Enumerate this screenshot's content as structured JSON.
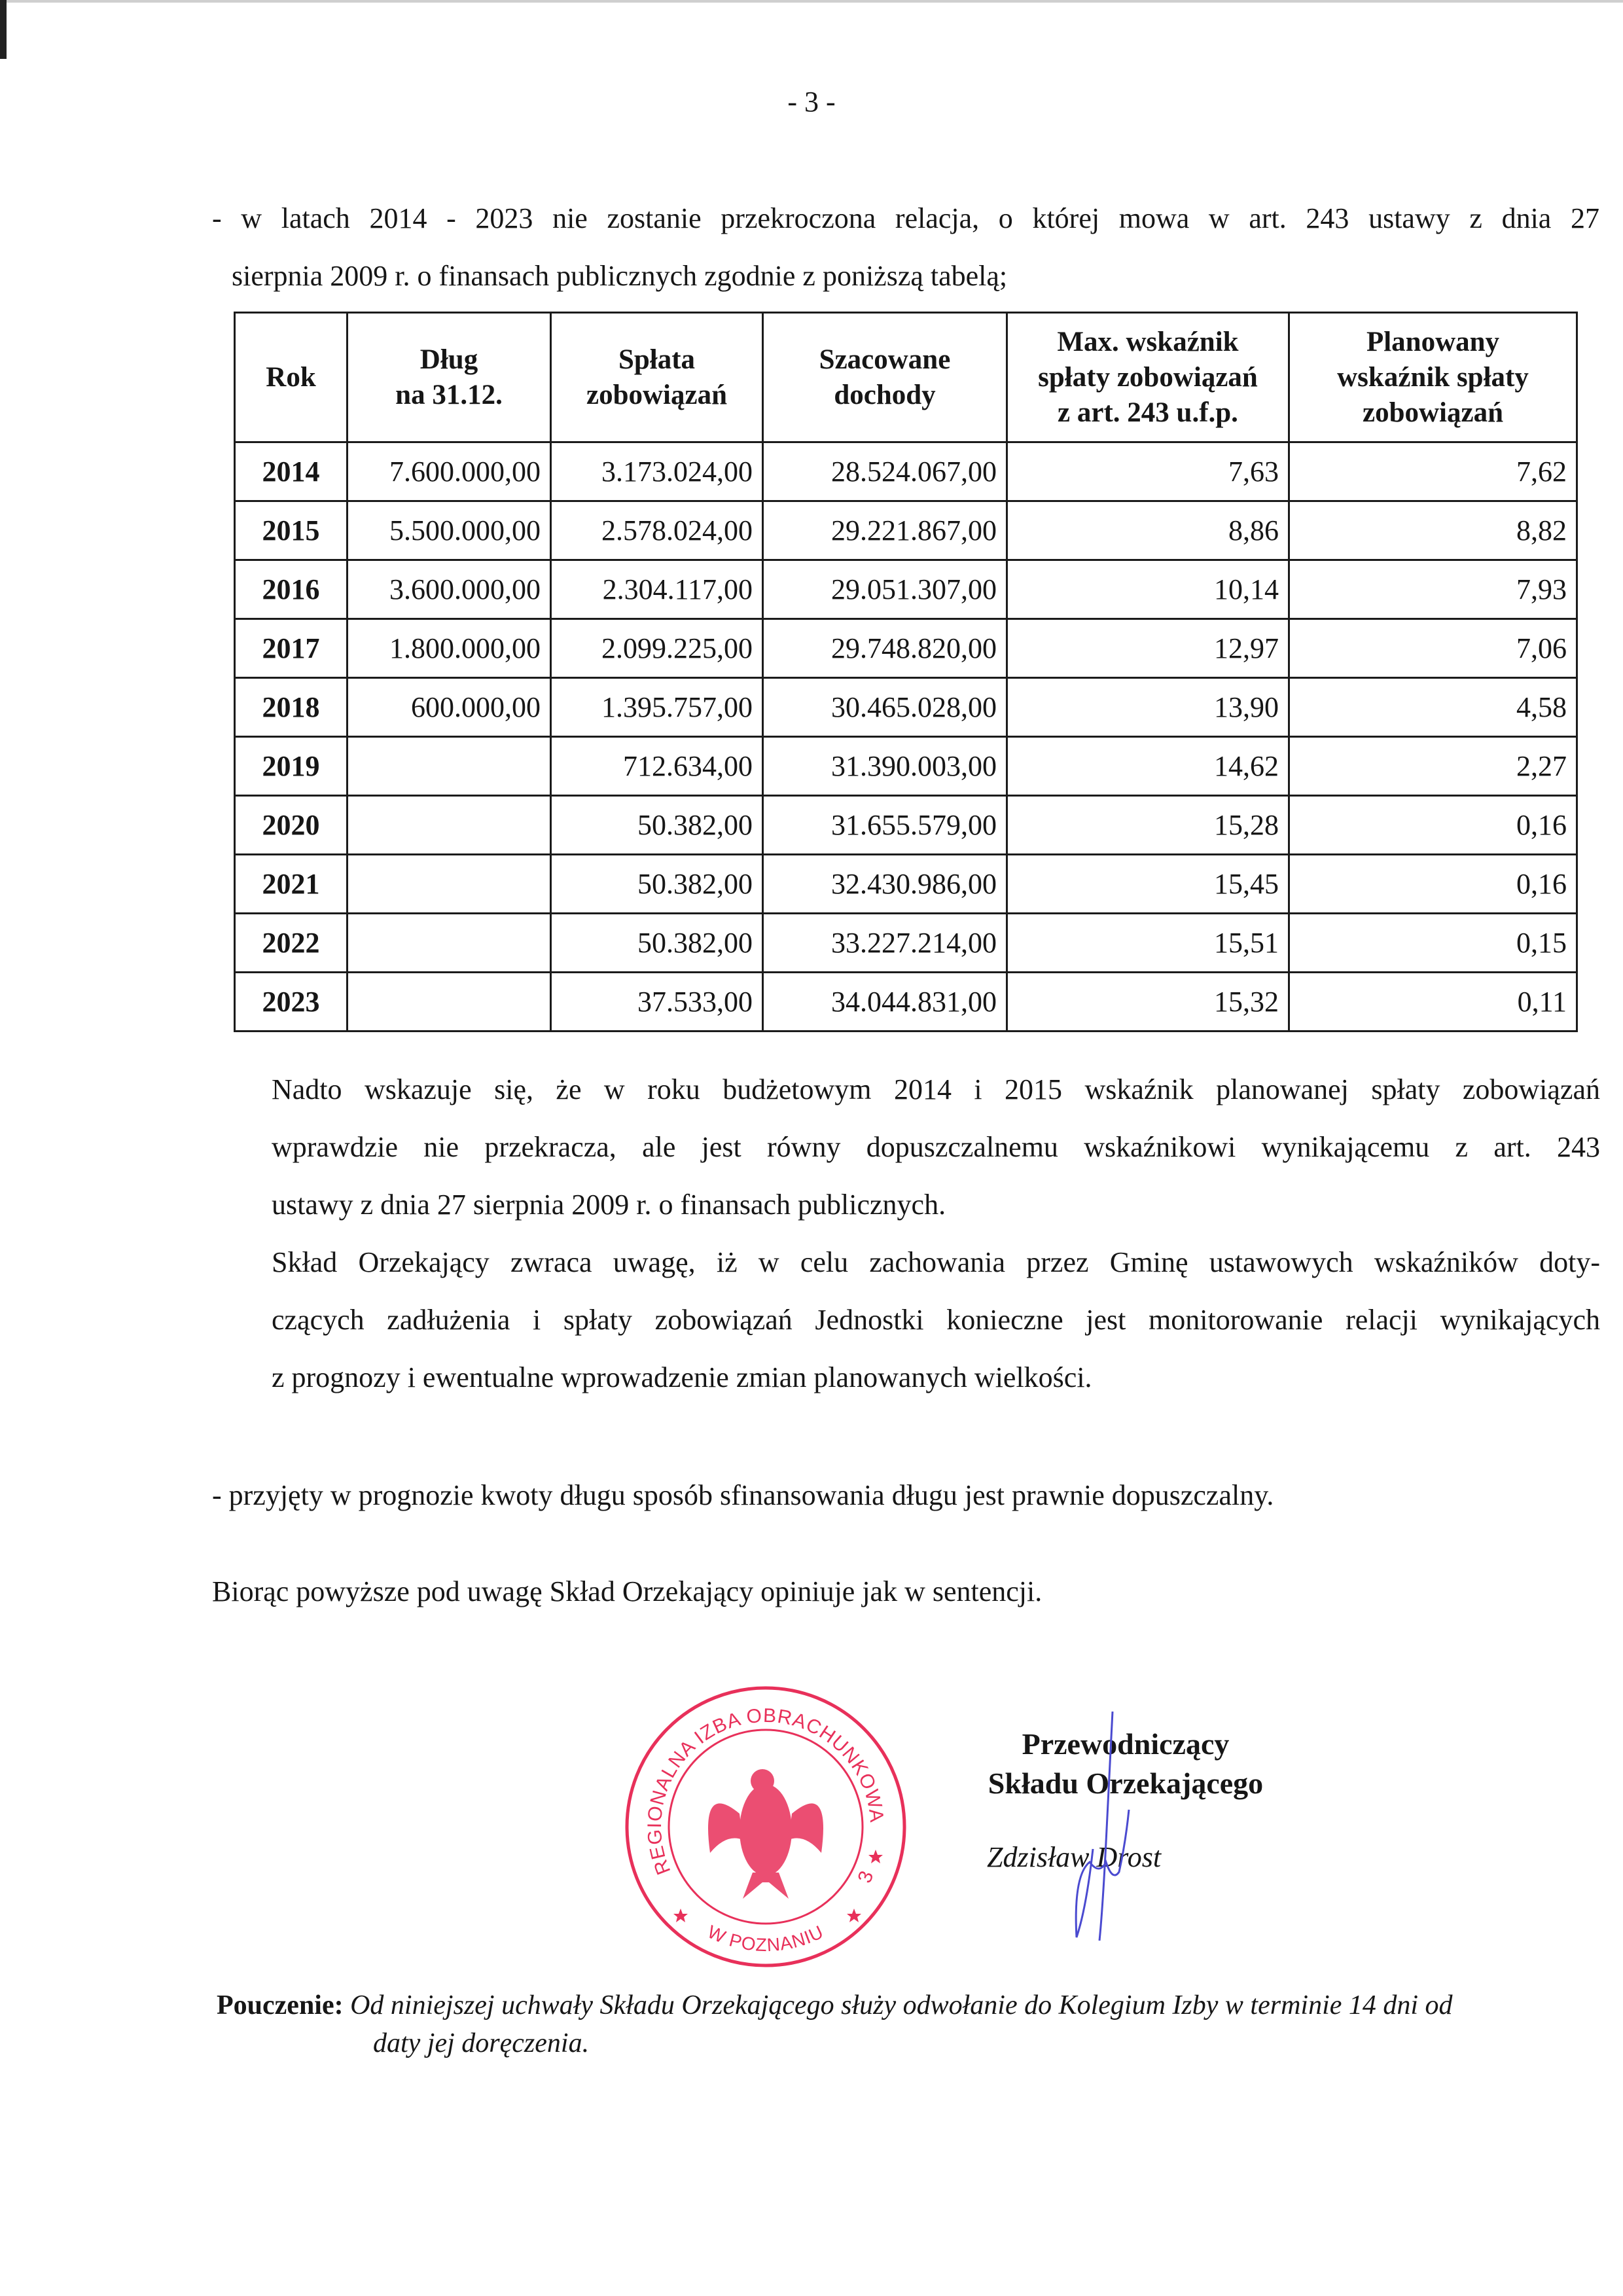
{
  "page_number": "- 3 -",
  "intro": {
    "line1": "- w latach 2014 - 2023 nie zostanie przekroczona relacja, o której mowa w art. 243 ustawy z dnia 27",
    "line2": "sierpnia 2009 r. o finansach publicznych zgodnie z poniższą tabelą;"
  },
  "table": {
    "headers": [
      "Rok",
      "Dług\nna 31.12.",
      "Spłata\nzobowiązań",
      "Szacowane\ndochody",
      "Max. wskaźnik\nspłaty zobowiązań\nz art. 243 u.f.p.",
      "Planowany\nwskaźnik spłaty\nzobowiązań"
    ],
    "rows": [
      [
        "2014",
        "7.600.000,00",
        "3.173.024,00",
        "28.524.067,00",
        "7,63",
        "7,62"
      ],
      [
        "2015",
        "5.500.000,00",
        "2.578.024,00",
        "29.221.867,00",
        "8,86",
        "8,82"
      ],
      [
        "2016",
        "3.600.000,00",
        "2.304.117,00",
        "29.051.307,00",
        "10,14",
        "7,93"
      ],
      [
        "2017",
        "1.800.000,00",
        "2.099.225,00",
        "29.748.820,00",
        "12,97",
        "7,06"
      ],
      [
        "2018",
        "600.000,00",
        "1.395.757,00",
        "30.465.028,00",
        "13,90",
        "4,58"
      ],
      [
        "2019",
        "",
        "712.634,00",
        "31.390.003,00",
        "14,62",
        "2,27"
      ],
      [
        "2020",
        "",
        "50.382,00",
        "31.655.579,00",
        "15,28",
        "0,16"
      ],
      [
        "2021",
        "",
        "50.382,00",
        "32.430.986,00",
        "15,45",
        "0,16"
      ],
      [
        "2022",
        "",
        "50.382,00",
        "33.227.214,00",
        "15,51",
        "0,15"
      ],
      [
        "2023",
        "",
        "37.533,00",
        "34.044.831,00",
        "15,32",
        "0,11"
      ]
    ]
  },
  "nadto": {
    "lines": [
      "Nadto wskazuje się, że w roku budżetowym 2014 i 2015 wskaźnik planowanej spłaty zobowiązań",
      "wprawdzie nie przekracza, ale jest równy dopuszczalnemu wskaźnikowi wynikającemu z art. 243",
      "ustawy z dnia 27 sierpnia 2009 r. o finansach publicznych.",
      "Skład Orzekający zwraca uwagę, iż w celu zachowania przez Gminę ustawowych wskaźników doty-",
      "czących zadłużenia i spłaty zobowiązań Jednostki konieczne jest monitorowanie relacji wynikających",
      "z prognozy i ewentualne wprowadzenie zmian planowanych wielkości."
    ]
  },
  "przyjety": "- przyjęty w prognozie kwoty długu sposób sfinansowania długu jest prawnie dopuszczalny.",
  "conclusion": "Biorąc powyższe pod uwagę Skład Orzekający opiniuje jak w sentencji.",
  "stamp": {
    "outer_text": "REGIONALNA IZBA OBRACHUNKOWA",
    "bottom_text": "W POZNANIU",
    "number": "3",
    "color": "#e8305a"
  },
  "signature_block": {
    "title_line1": "Przewodniczący",
    "title_line2": "Składu Orzekającego",
    "name": "Zdzisław Drost",
    "ink_color": "#4a4ad0"
  },
  "pouczenie": {
    "label": "Pouczenie:",
    "line1": "Od niniejszej uchwały Składu Orzekającego służy odwołanie do Kolegium Izby w terminie 14 dni od",
    "line2": "daty jej doręczenia."
  }
}
